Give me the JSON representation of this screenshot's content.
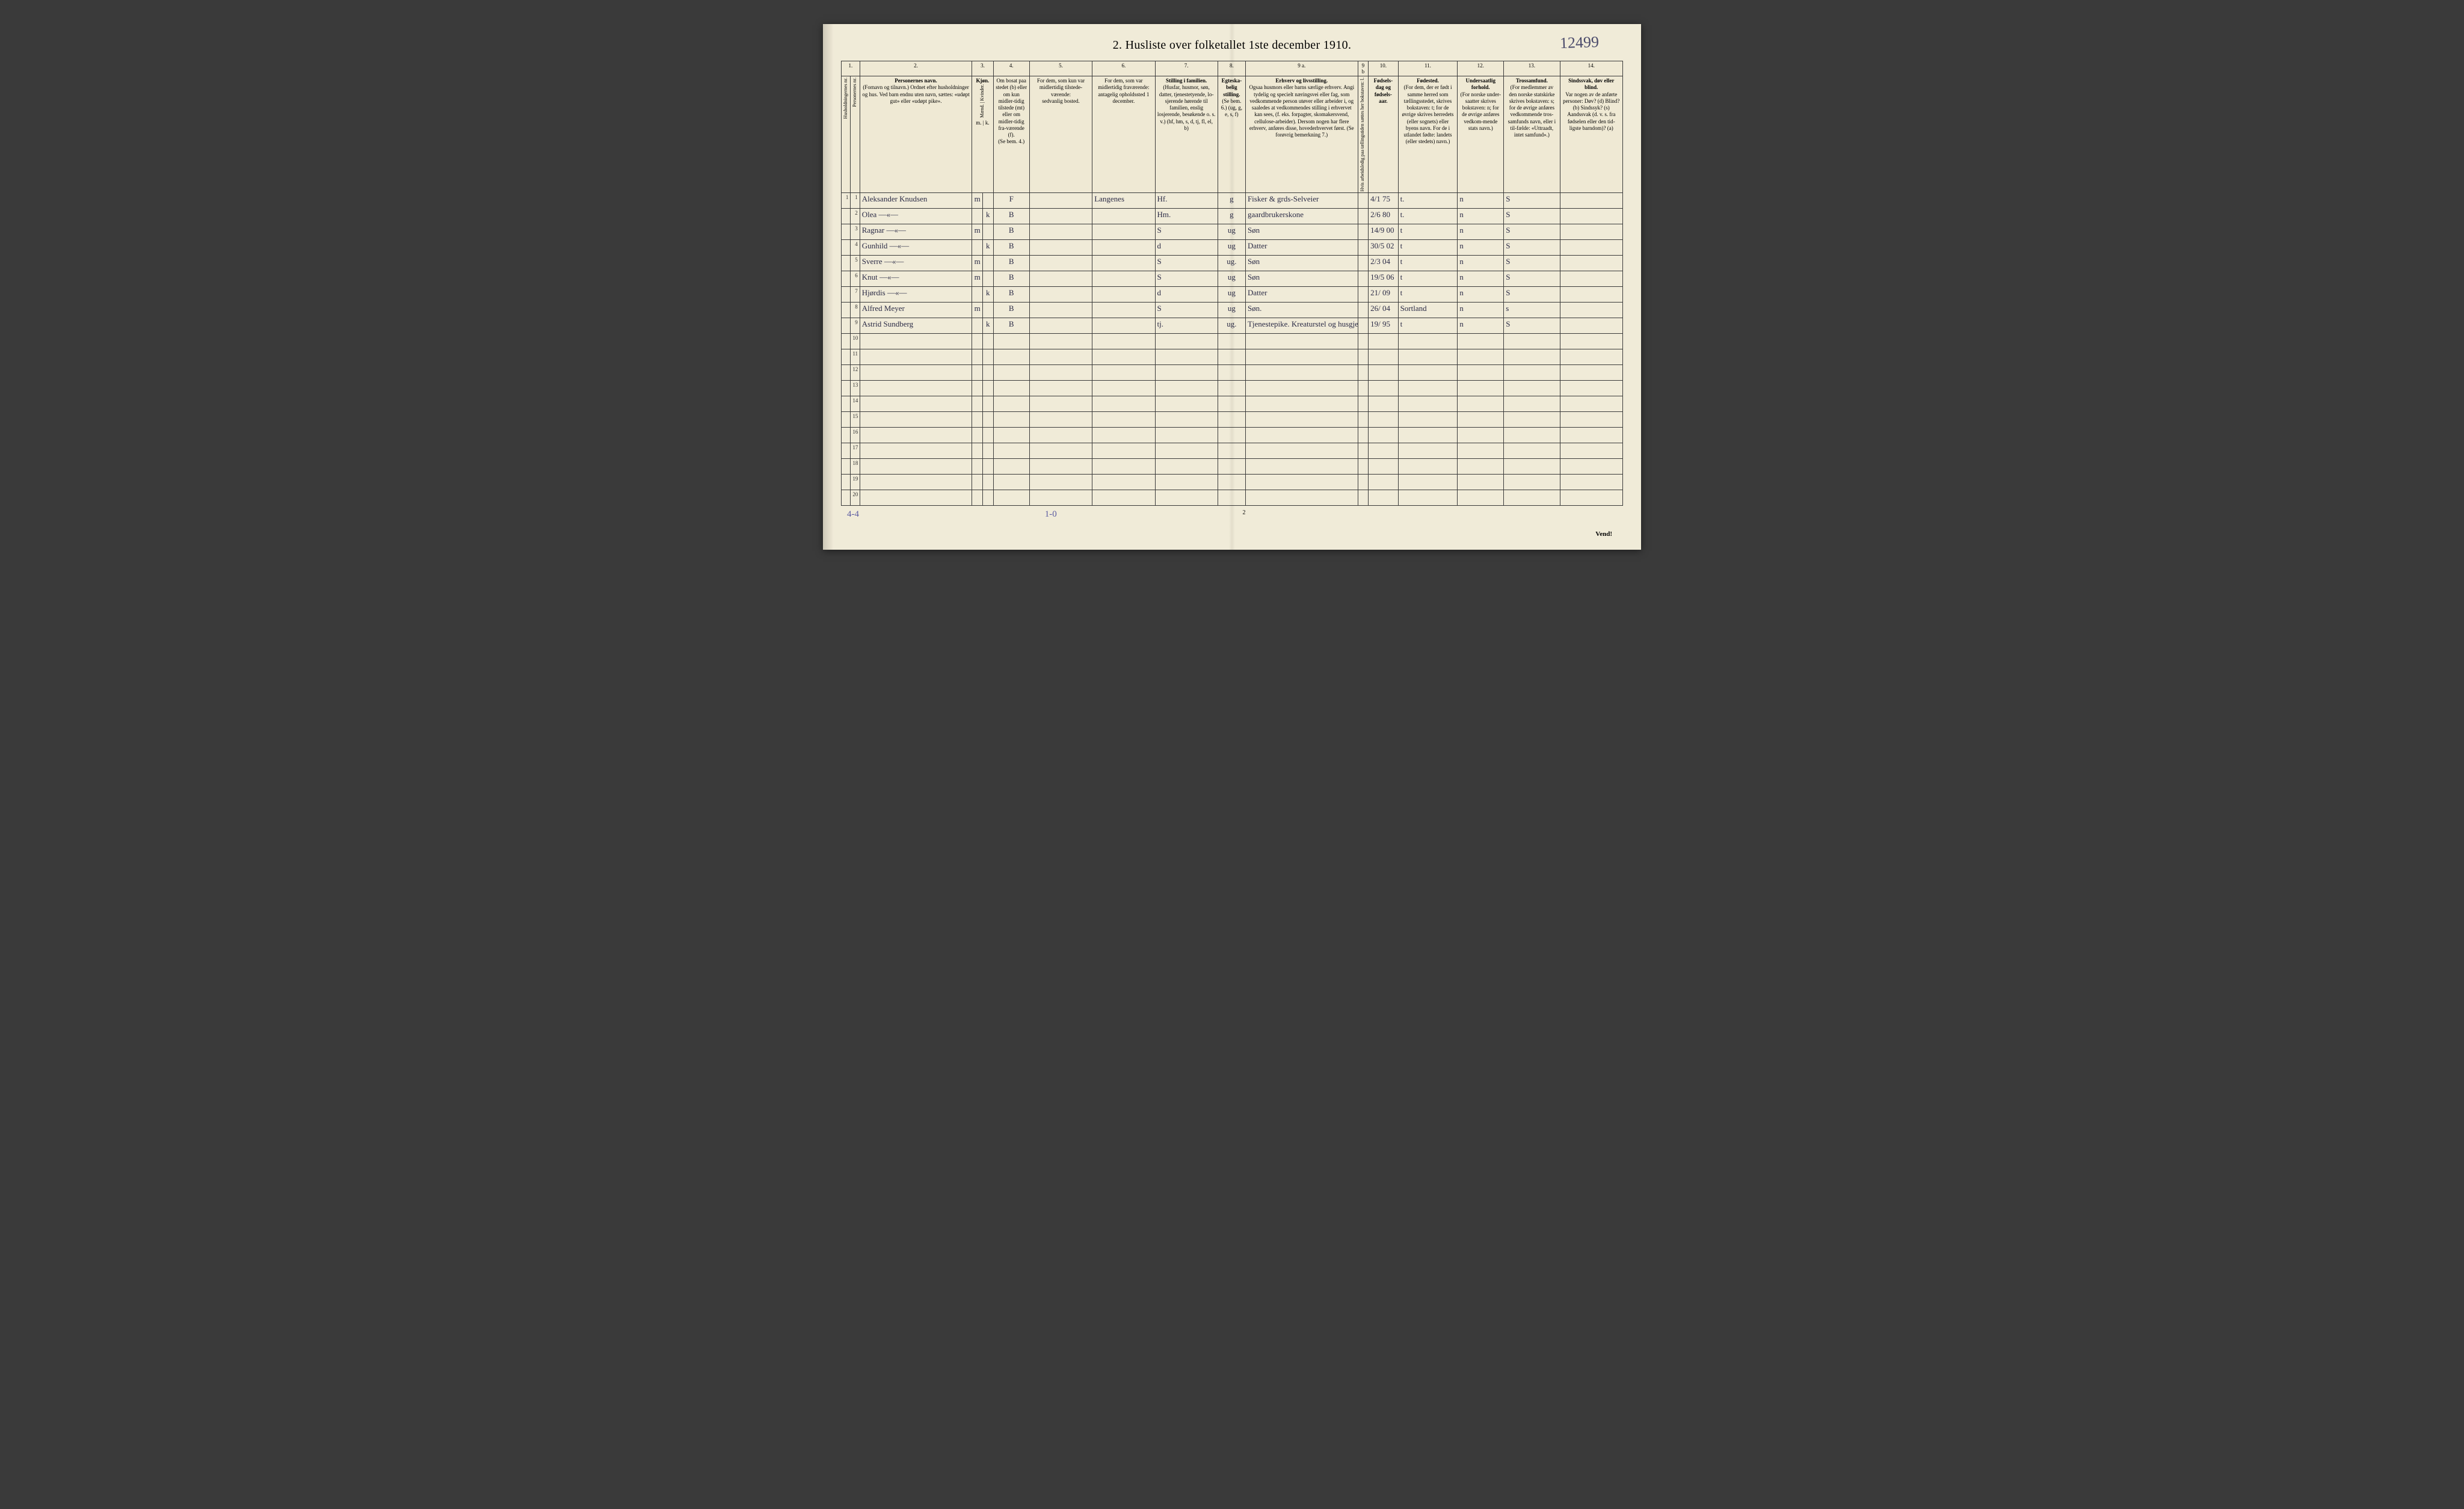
{
  "page": {
    "title": "2.  Husliste over folketallet 1ste december 1910.",
    "handwritten_topright": "12499",
    "footer_left": "4-4",
    "footer_mid_hand": "1-0",
    "footer_center_print": "2",
    "vend": "Vend!"
  },
  "columns": {
    "nums": [
      "1.",
      "2.",
      "3.",
      "4.",
      "5.",
      "6.",
      "7.",
      "8.",
      "9 a.",
      "9 b",
      "10.",
      "11.",
      "12.",
      "13.",
      "14."
    ],
    "h1a": "Husholdningernes nr.",
    "h1b": "Personernes nr.",
    "h2_title": "Personernes navn.",
    "h2_body": "(Fornavn og tilnavn.)\nOrdnet efter husholdninger og hus.\nVed barn endnu uten navn, sættes: «udøpt gut» eller «udøpt pike».",
    "h3_title": "Kjøn.",
    "h3_sub": "Mænd. | Kvinder.",
    "h3_mk": "m. | k.",
    "h4_title": "Om bosat paa stedet (b) eller om kun midler-tidig tilstede (mt) eller om midler-tidig fra-værende (f).",
    "h4_note": "(Se bem. 4.)",
    "h5_title": "For dem, som kun var midlertidig tilstede-værende:",
    "h5_body": "sedvanlig bosted.",
    "h6_title": "For dem, som var midlertidig fraværende:",
    "h6_body": "antagelig opholdssted 1 december.",
    "h7_title": "Stilling i familien.",
    "h7_body": "(Husfar, husmor, søn, datter, tjenestetyende, lo-sjerende hørende til familien, enslig losjerende, besøkende o. s. v.)\n(hf, hm, s, d, tj, fl, el, b)",
    "h8_title": "Egteska-belig stilling.",
    "h8_body": "(Se bem. 6.)\n(ug, g, e, s, f)",
    "h9a_title": "Erhverv og livsstilling.",
    "h9a_body": "Ogsaa husmors eller barns særlige erhverv. Angi tydelig og specielt næringsvei eller fag, som vedkommende person utøver eller arbeider i, og saaledes at vedkommendes stilling i erhvervet kan sees, (f. eks. forpagter, skomakersvend, cellulose-arbeider). Dersom nogen har flere erhverv, anføres disse, hovederhvervet først.\n(Se forøvrig bemerkning 7.)",
    "h9b": "Hvis arbeidsledig paa tællingstiden sættes her bokstaven: l.",
    "h10_title": "Fødsels-dag og fødsels-aar.",
    "h11_title": "Fødested.",
    "h11_body": "(For dem, der er født i samme herred som tællingsstedet, skrives bokstaven: t; for de øvrige skrives herredets (eller sognets) eller byens navn. For de i utlandet fødte: landets (eller stedets) navn.)",
    "h12_title": "Undersaatlig forhold.",
    "h12_body": "(For norske under-saatter skrives bokstaven: n; for de øvrige anføres vedkom-mende stats navn.)",
    "h13_title": "Trossamfund.",
    "h13_body": "(For medlemmer av den norske statskirke skrives bokstaven: s; for de øvrige anføres vedkommende tros-samfunds navn, eller i til-fælde: «Uttraadt, intet samfund».)",
    "h14_title": "Sindssvak, døv eller blind.",
    "h14_body": "Var nogen av de anførte personer:\nDøv?        (d)\nBlind?      (b)\nSindssyk?  (s)\nAandssvak (d. v. s. fra fødselen eller den tid-ligste barndom)? (a)"
  },
  "rows": [
    {
      "hh": "1",
      "pn": "1",
      "name": "Aleksander Knudsen",
      "m": "m",
      "k": "",
      "b": "F",
      "c5": "",
      "c6": "Langenes",
      "c7": "Hf.",
      "c8": "g",
      "c9a": "Fisker & grds-Selveier",
      "c9b": "",
      "c10": "4/1 75",
      "c11": "t.",
      "c12": "n",
      "c13": "S",
      "c14": ""
    },
    {
      "hh": "",
      "pn": "2",
      "name": "Olea         —«—",
      "m": "",
      "k": "k",
      "b": "B",
      "c5": "",
      "c6": "",
      "c7": "Hm.",
      "c8": "g",
      "c9a": "gaardbrukerskone",
      "c9b": "",
      "c10": "2/6 80",
      "c11": "t.",
      "c12": "n",
      "c13": "S",
      "c14": ""
    },
    {
      "hh": "",
      "pn": "3",
      "name": "Ragnar       —«—",
      "m": "m",
      "k": "",
      "b": "B",
      "c5": "",
      "c6": "",
      "c7": "S",
      "c8": "ug",
      "c9a": "Søn",
      "c9b": "",
      "c10": "14/9 00",
      "c11": "t",
      "c12": "n",
      "c13": "S",
      "c14": ""
    },
    {
      "hh": "",
      "pn": "4",
      "name": "Gunhild      —«—",
      "m": "",
      "k": "k",
      "b": "B",
      "c5": "",
      "c6": "",
      "c7": "d",
      "c8": "ug",
      "c9a": "Datter",
      "c9b": "",
      "c10": "30/5 02",
      "c11": "t",
      "c12": "n",
      "c13": "S",
      "c14": ""
    },
    {
      "hh": "",
      "pn": "5",
      "name": "Sverre       —«—",
      "m": "m",
      "k": "",
      "b": "B",
      "c5": "",
      "c6": "",
      "c7": "S",
      "c8": "ug.",
      "c9a": "Søn",
      "c9b": "",
      "c10": "2/3 04",
      "c11": "t",
      "c12": "n",
      "c13": "S",
      "c14": ""
    },
    {
      "hh": "",
      "pn": "6",
      "name": "Knut         —«—",
      "m": "m",
      "k": "",
      "b": "B",
      "c5": "",
      "c6": "",
      "c7": "S",
      "c8": "ug",
      "c9a": "Søn",
      "c9b": "",
      "c10": "19/5 06",
      "c11": "t",
      "c12": "n",
      "c13": "S",
      "c14": ""
    },
    {
      "hh": "",
      "pn": "7",
      "name": "Hjørdis      —«—",
      "m": "",
      "k": "k",
      "b": "B",
      "c5": "",
      "c6": "",
      "c7": "d",
      "c8": "ug",
      "c9a": "Datter",
      "c9b": "",
      "c10": "21/ 09",
      "c11": "t",
      "c12": "n",
      "c13": "S",
      "c14": ""
    },
    {
      "hh": "",
      "pn": "8",
      "name": "Alfred   Meyer",
      "m": "m",
      "k": "",
      "b": "B",
      "c5": "",
      "c6": "",
      "c7": "S",
      "c8": "ug",
      "c9a": "Søn.",
      "c9b": "",
      "c10": "26/ 04",
      "c11": "Sortland",
      "c12": "n",
      "c13": "s",
      "c14": ""
    },
    {
      "hh": "",
      "pn": "9",
      "name": "Astrid  Sundberg",
      "m": "",
      "k": "k",
      "b": "B",
      "c5": "",
      "c6": "",
      "c7": "tj.",
      "c8": "ug.",
      "c9a": "Tjenestepike. Kreaturstel og husgjerning",
      "c9b": "",
      "c10": "19/ 95",
      "c11": "t",
      "c12": "n",
      "c13": "S",
      "c14": ""
    }
  ],
  "blankRows": 11,
  "style": {
    "page_bg": "#f0ebd8",
    "border_color": "#3a3a3a",
    "hand_color": "#2a2a45",
    "footer_hand_color": "#5a5aa0"
  }
}
